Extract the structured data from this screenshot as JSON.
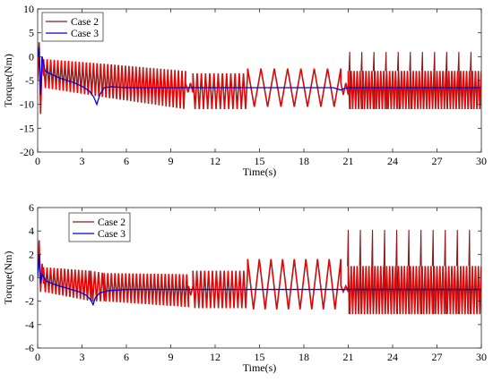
{
  "chart_data": [
    {
      "type": "line",
      "xlabel": "Time(s)",
      "ylabel": "Torque(Nm)",
      "xlim": [
        0,
        30
      ],
      "ylim": [
        -20,
        10
      ],
      "xticks": [
        "0",
        "3",
        "6",
        "9",
        "12",
        "15",
        "18",
        "21",
        "24",
        "27",
        "30"
      ],
      "yticks": [
        "-20",
        "-15",
        "-10",
        "-5",
        "0",
        "5",
        "10"
      ],
      "legend_position": "top-left",
      "grid": false,
      "series": [
        {
          "name": "Case 2",
          "color": "#ff0000",
          "edge_color": "#8b1a1a",
          "style": "oscillating band",
          "segments": [
            {
              "t": [
                0.4,
                4.5
              ],
              "period": 0.12,
              "upper": [
                -0.5,
                -1.5
              ],
              "lower": [
                -6.5,
                -8.5
              ]
            },
            {
              "t": [
                4.5,
                10.0
              ],
              "period": 0.12,
              "upper": [
                -1.5,
                -3.0
              ],
              "lower": [
                -8.5,
                -11.0
              ]
            },
            {
              "t": [
                10.0,
                10.5
              ],
              "period": 0.2,
              "upper": [
                -5.5,
                -5.5
              ],
              "lower": [
                -7.5,
                -7.5
              ]
            },
            {
              "t": [
                10.5,
                14.2
              ],
              "period": 0.14,
              "upper": [
                -3.5,
                -3.5
              ],
              "lower": [
                -11.0,
                -11.0
              ]
            },
            {
              "t": [
                14.2,
                20.5
              ],
              "period": 0.45,
              "upper": [
                -2.5,
                -2.5
              ],
              "lower": [
                -10.5,
                -10.5
              ]
            },
            {
              "t": [
                20.5,
                21.0
              ],
              "period": 0.2,
              "upper": [
                -5.5,
                -5.5
              ],
              "lower": [
                -8.0,
                -8.0
              ]
            },
            {
              "t": [
                21.0,
                30.0
              ],
              "period": 0.1,
              "upper": [
                -3.0,
                -3.0
              ],
              "lower": [
                -11.0,
                -11.0
              ]
            }
          ],
          "spikes": {
            "start": 21.1,
            "step": 0.82,
            "count": 11,
            "peak": 1.0
          },
          "transient": {
            "t": [
              0,
              0.1,
              0.2,
              0.3,
              0.4
            ],
            "y": [
              -5,
              3,
              -12,
              0,
              -4
            ]
          }
        },
        {
          "name": "Case 3",
          "color": "#0000dd",
          "style": "line",
          "x": [
            0,
            0.1,
            0.2,
            0.3,
            0.5,
            0.8,
            1.5,
            2.5,
            3.0,
            3.5,
            3.8,
            4.0,
            4.2,
            4.5,
            5.0,
            6.0,
            8.0,
            10.0,
            12.0,
            14.0,
            16.0,
            18.0,
            20.0,
            20.5,
            20.7,
            21.0,
            24.0,
            27.0,
            30.0
          ],
          "y": [
            0,
            2,
            -8,
            0,
            -3,
            -3.5,
            -4.5,
            -5.5,
            -6.2,
            -7.2,
            -8.5,
            -10.0,
            -8.0,
            -6.5,
            -6.3,
            -6.5,
            -6.5,
            -6.5,
            -6.5,
            -6.5,
            -6.5,
            -6.5,
            -6.5,
            -7.0,
            -6.7,
            -6.5,
            -6.5,
            -6.5,
            -6.5
          ]
        }
      ]
    },
    {
      "type": "line",
      "xlabel": "Time(s)",
      "ylabel": "Torque(Nm)",
      "xlim": [
        0,
        30
      ],
      "ylim": [
        -6,
        6
      ],
      "xticks": [
        "0",
        "3",
        "6",
        "9",
        "12",
        "15",
        "18",
        "21",
        "24",
        "27",
        "30"
      ],
      "yticks": [
        "-6",
        "-4",
        "-2",
        "0",
        "2",
        "4",
        "6"
      ],
      "legend_position": "top-center",
      "grid": false,
      "series": [
        {
          "name": "Case 2",
          "color": "#ff0000",
          "edge_color": "#8b1a1a",
          "style": "oscillating band",
          "segments": [
            {
              "t": [
                0.4,
                3.6
              ],
              "period": 0.12,
              "upper": [
                0.9,
                0.6
              ],
              "lower": [
                -1.2,
                -2.0
              ]
            },
            {
              "t": [
                3.6,
                4.5
              ],
              "period": 0.12,
              "upper": [
                0.6,
                0.4
              ],
              "lower": [
                -2.0,
                -2.0
              ]
            },
            {
              "t": [
                4.5,
                10.2
              ],
              "period": 0.12,
              "upper": [
                0.4,
                0.3
              ],
              "lower": [
                -2.0,
                -2.5
              ]
            },
            {
              "t": [
                10.2,
                10.5
              ],
              "period": 0.15,
              "upper": [
                -0.7,
                -0.7
              ],
              "lower": [
                -1.5,
                -1.5
              ]
            },
            {
              "t": [
                10.5,
                14.2
              ],
              "period": 0.13,
              "upper": [
                0.6,
                0.6
              ],
              "lower": [
                -2.6,
                -2.6
              ]
            },
            {
              "t": [
                14.2,
                20.5
              ],
              "period": 0.4,
              "upper": [
                1.6,
                1.6
              ],
              "lower": [
                -2.7,
                -2.7
              ]
            },
            {
              "t": [
                20.5,
                21.0
              ],
              "period": 0.2,
              "upper": [
                -0.7,
                -0.7
              ],
              "lower": [
                -1.2,
                -1.2
              ]
            },
            {
              "t": [
                21.0,
                30.0
              ],
              "period": 0.1,
              "upper": [
                1.0,
                1.0
              ],
              "lower": [
                -3.1,
                -3.1
              ]
            }
          ],
          "spikes": {
            "start": 21.0,
            "step": 0.82,
            "count": 11,
            "peak": 4.1
          },
          "transient": {
            "t": [
              0,
              0.1,
              0.2,
              0.3,
              0.4
            ],
            "y": [
              0,
              3.2,
              -1.2,
              1.2,
              -0.5
            ]
          }
        },
        {
          "name": "Case 3",
          "color": "#0000dd",
          "style": "line",
          "x": [
            0,
            0.1,
            0.2,
            0.3,
            0.6,
            1.2,
            2.0,
            2.8,
            3.3,
            3.6,
            3.75,
            3.9,
            4.2,
            4.8,
            6.0,
            9.0,
            12.0,
            15.0,
            18.0,
            21.0,
            24.0,
            27.0,
            30.0
          ],
          "y": [
            0,
            2.0,
            -0.5,
            0.3,
            -0.3,
            -0.6,
            -0.9,
            -1.2,
            -1.5,
            -1.9,
            -2.3,
            -1.7,
            -1.3,
            -1.1,
            -1.0,
            -1.0,
            -1.0,
            -1.0,
            -1.0,
            -1.0,
            -1.0,
            -1.0,
            -1.0
          ]
        }
      ]
    }
  ]
}
